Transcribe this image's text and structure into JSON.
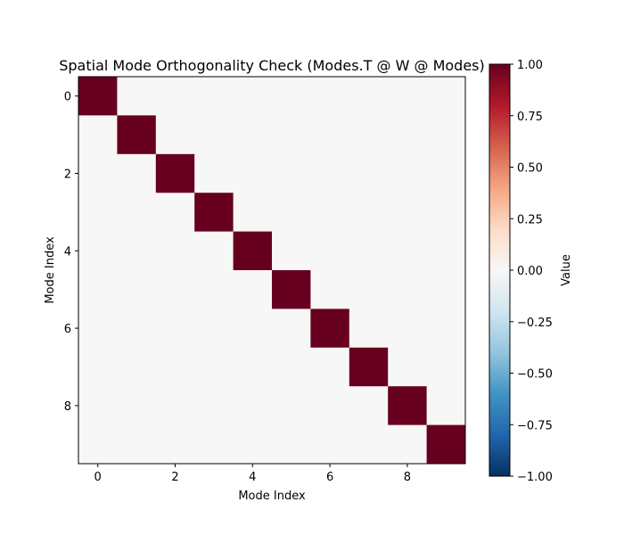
{
  "chart_data": {
    "type": "heatmap",
    "title": "Spatial Mode Orthogonality Check (Modes.T @ W @ Modes)",
    "xlabel": "Mode Index",
    "ylabel": "Mode Index",
    "colorbar_label": "Value",
    "x_ticks": [
      "0",
      "2",
      "4",
      "6",
      "8"
    ],
    "y_ticks": [
      "0",
      "2",
      "4",
      "6",
      "8"
    ],
    "colorbar_ticks": [
      "1.00",
      "0.75",
      "0.50",
      "0.25",
      "0.00",
      "−0.25",
      "−0.50",
      "−0.75",
      "−1.00"
    ],
    "vmin": -1.0,
    "vmax": 1.0,
    "colormap": "RdBu_r",
    "rows": 10,
    "cols": 10,
    "matrix": [
      [
        1,
        0,
        0,
        0,
        0,
        0,
        0,
        0,
        0,
        0
      ],
      [
        0,
        1,
        0,
        0,
        0,
        0,
        0,
        0,
        0,
        0
      ],
      [
        0,
        0,
        1,
        0,
        0,
        0,
        0,
        0,
        0,
        0
      ],
      [
        0,
        0,
        0,
        1,
        0,
        0,
        0,
        0,
        0,
        0
      ],
      [
        0,
        0,
        0,
        0,
        1,
        0,
        0,
        0,
        0,
        0
      ],
      [
        0,
        0,
        0,
        0,
        0,
        1,
        0,
        0,
        0,
        0
      ],
      [
        0,
        0,
        0,
        0,
        0,
        0,
        1,
        0,
        0,
        0
      ],
      [
        0,
        0,
        0,
        0,
        0,
        0,
        0,
        1,
        0,
        0
      ],
      [
        0,
        0,
        0,
        0,
        0,
        0,
        0,
        0,
        1,
        0
      ],
      [
        0,
        0,
        0,
        0,
        0,
        0,
        0,
        0,
        0,
        1
      ]
    ]
  }
}
